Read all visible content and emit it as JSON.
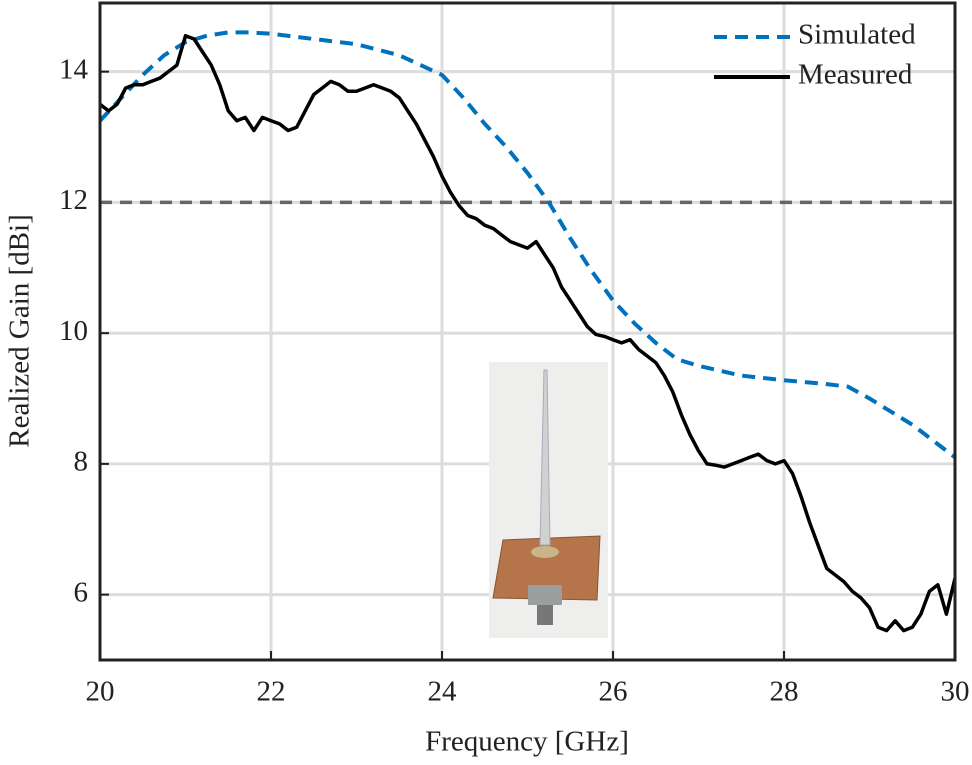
{
  "chart_data": {
    "type": "line",
    "xlabel": "Frequency [GHz]",
    "ylabel": "Realized Gain [dBi]",
    "xlim": [
      20,
      30
    ],
    "ylim": [
      5,
      15.05
    ],
    "xticks": [
      20,
      22,
      24,
      26,
      28,
      30
    ],
    "yticks": [
      6,
      8,
      10,
      12,
      14
    ],
    "grid": true,
    "legend": "upper right",
    "hline": {
      "value": 12,
      "color": "#666666"
    },
    "series": [
      {
        "name": "Simulated",
        "color": "#0072bd",
        "dashed": true,
        "x": [
          20,
          20.25,
          20.5,
          20.75,
          21,
          21.25,
          21.5,
          21.75,
          22,
          22.5,
          23,
          23.5,
          24,
          24.25,
          24.5,
          24.75,
          25,
          25.25,
          25.5,
          25.75,
          26,
          26.25,
          26.5,
          26.75,
          27,
          27.5,
          28,
          28.5,
          28.75,
          29,
          29.5,
          30
        ],
        "values": [
          13.25,
          13.6,
          13.95,
          14.25,
          14.45,
          14.55,
          14.6,
          14.6,
          14.58,
          14.5,
          14.42,
          14.25,
          13.95,
          13.6,
          13.2,
          12.85,
          12.45,
          12.0,
          11.45,
          10.95,
          10.5,
          10.15,
          9.85,
          9.6,
          9.5,
          9.35,
          9.28,
          9.22,
          9.18,
          9.0,
          8.6,
          8.1
        ]
      },
      {
        "name": "Measured",
        "color": "#000000",
        "dashed": false,
        "x": [
          20,
          20.1,
          20.2,
          20.3,
          20.4,
          20.5,
          20.6,
          20.7,
          20.8,
          20.9,
          21,
          21.1,
          21.2,
          21.3,
          21.4,
          21.5,
          21.6,
          21.7,
          21.8,
          21.9,
          22,
          22.1,
          22.2,
          22.3,
          22.4,
          22.5,
          22.6,
          22.7,
          22.8,
          22.9,
          23,
          23.1,
          23.2,
          23.3,
          23.4,
          23.5,
          23.6,
          23.7,
          23.8,
          23.9,
          24,
          24.1,
          24.2,
          24.3,
          24.4,
          24.5,
          24.6,
          24.7,
          24.8,
          24.9,
          25,
          25.1,
          25.2,
          25.3,
          25.4,
          25.5,
          25.6,
          25.7,
          25.8,
          25.9,
          26,
          26.1,
          26.2,
          26.3,
          26.4,
          26.5,
          26.6,
          26.7,
          26.8,
          26.9,
          27,
          27.1,
          27.2,
          27.3,
          27.4,
          27.5,
          27.6,
          27.7,
          27.8,
          27.9,
          28,
          28.1,
          28.2,
          28.3,
          28.4,
          28.5,
          28.6,
          28.7,
          28.8,
          28.9,
          29,
          29.1,
          29.2,
          29.3,
          29.4,
          29.5,
          29.6,
          29.7,
          29.8,
          29.9,
          30
        ],
        "values": [
          13.5,
          13.4,
          13.5,
          13.75,
          13.8,
          13.8,
          13.85,
          13.9,
          14.0,
          14.1,
          14.55,
          14.5,
          14.3,
          14.1,
          13.8,
          13.4,
          13.25,
          13.3,
          13.1,
          13.3,
          13.25,
          13.2,
          13.1,
          13.15,
          13.4,
          13.65,
          13.75,
          13.85,
          13.8,
          13.7,
          13.7,
          13.75,
          13.8,
          13.75,
          13.7,
          13.6,
          13.4,
          13.2,
          12.95,
          12.7,
          12.4,
          12.15,
          11.95,
          11.8,
          11.75,
          11.65,
          11.6,
          11.5,
          11.4,
          11.35,
          11.3,
          11.4,
          11.2,
          11.0,
          10.7,
          10.5,
          10.3,
          10.1,
          9.98,
          9.95,
          9.9,
          9.85,
          9.9,
          9.75,
          9.65,
          9.55,
          9.35,
          9.1,
          8.75,
          8.45,
          8.2,
          8.0,
          7.98,
          7.95,
          8.0,
          8.05,
          8.1,
          8.15,
          8.05,
          8.0,
          8.05,
          7.85,
          7.5,
          7.1,
          6.75,
          6.4,
          6.3,
          6.2,
          6.05,
          5.95,
          5.8,
          5.5,
          5.45,
          5.6,
          5.45,
          5.5,
          5.7,
          6.05,
          6.15,
          5.7,
          6.25
        ]
      }
    ]
  }
}
